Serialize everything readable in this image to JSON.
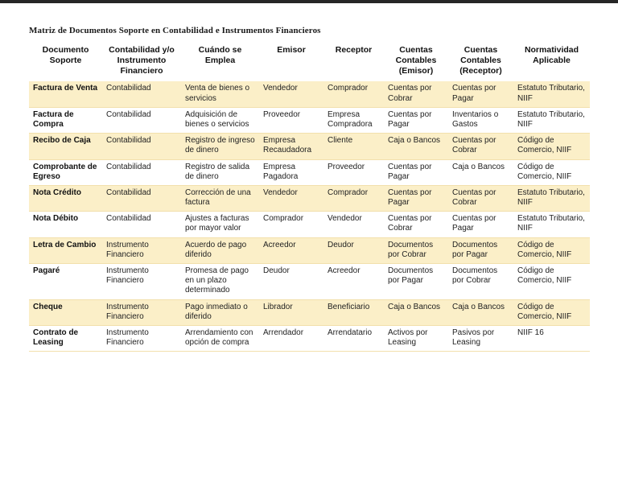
{
  "page": {
    "title": "Matriz de Documentos Soporte en Contabilidad e Instrumentos Financieros"
  },
  "colors": {
    "row_highlight": "#fbefc8",
    "row_border": "#f2e0ac",
    "text": "#222222"
  },
  "table": {
    "columns": [
      "Documento Soporte",
      "Contabilidad y/o Instrumento Financiero",
      "Cuándo se Emplea",
      "Emisor",
      "Receptor",
      "Cuentas Contables (Emisor)",
      "Cuentas Contables (Receptor)",
      "Normatividad Aplicable"
    ],
    "rows": [
      {
        "highlight": true,
        "cells": [
          "Factura de Venta",
          "Contabilidad",
          "Venta de bienes o servicios",
          "Vendedor",
          "Comprador",
          "Cuentas por Cobrar",
          "Cuentas por Pagar",
          "Estatuto Tributario, NIIF"
        ]
      },
      {
        "highlight": false,
        "cells": [
          "Factura de Compra",
          "Contabilidad",
          "Adquisición de bienes o servicios",
          "Proveedor",
          "Empresa Compradora",
          "Cuentas por Pagar",
          "Inventarios o Gastos",
          "Estatuto Tributario, NIIF"
        ]
      },
      {
        "highlight": true,
        "cells": [
          "Recibo de Caja",
          "Contabilidad",
          "Registro de ingreso de dinero",
          "Empresa Recaudadora",
          "Cliente",
          "Caja o Bancos",
          "Cuentas por Cobrar",
          "Código de Comercio, NIIF"
        ]
      },
      {
        "highlight": false,
        "cells": [
          "Comprobante de Egreso",
          "Contabilidad",
          "Registro de salida de dinero",
          "Empresa Pagadora",
          "Proveedor",
          "Cuentas por Pagar",
          "Caja o Bancos",
          "Código de Comercio, NIIF"
        ]
      },
      {
        "highlight": true,
        "cells": [
          "Nota Crédito",
          "Contabilidad",
          "Corrección de una factura",
          "Vendedor",
          "Comprador",
          "Cuentas por Pagar",
          "Cuentas por Cobrar",
          "Estatuto Tributario, NIIF"
        ]
      },
      {
        "highlight": false,
        "cells": [
          "Nota Débito",
          "Contabilidad",
          "Ajustes a facturas por mayor valor",
          "Comprador",
          "Vendedor",
          "Cuentas por Cobrar",
          "Cuentas por Pagar",
          "Estatuto Tributario, NIIF"
        ]
      },
      {
        "highlight": true,
        "cells": [
          "Letra de Cambio",
          "Instrumento Financiero",
          "Acuerdo de pago diferido",
          "Acreedor",
          "Deudor",
          "Documentos por Cobrar",
          "Documentos por Pagar",
          "Código de Comercio, NIIF"
        ]
      },
      {
        "highlight": false,
        "cells": [
          "Pagaré",
          "Instrumento Financiero",
          "Promesa de pago en un plazo determinado",
          "Deudor",
          "Acreedor",
          "Documentos por Pagar",
          "Documentos por Cobrar",
          "Código de Comercio, NIIF"
        ]
      },
      {
        "highlight": true,
        "cells": [
          "Cheque",
          "Instrumento Financiero",
          "Pago inmediato o diferido",
          "Librador",
          "Beneficiario",
          "Caja o Bancos",
          "Caja o Bancos",
          "Código de Comercio, NIIF"
        ]
      },
      {
        "highlight": false,
        "cells": [
          "Contrato de Leasing",
          "Instrumento Financiero",
          "Arrendamiento con opción de compra",
          "Arrendador",
          "Arrendatario",
          "Activos por Leasing",
          "Pasivos por Leasing",
          "NIIF 16"
        ]
      }
    ]
  }
}
